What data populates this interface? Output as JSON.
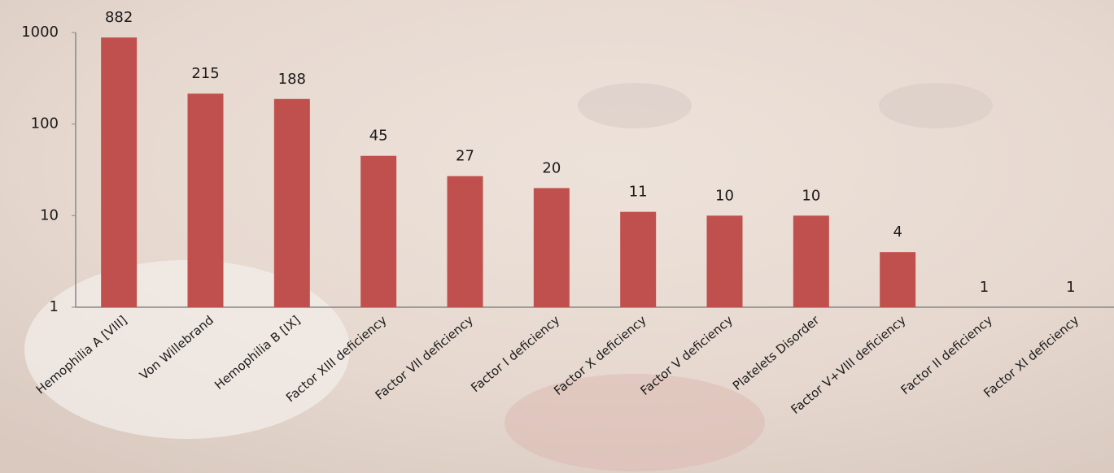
{
  "chart_data": {
    "type": "bar",
    "categories": [
      "Hemophilia A [VIII]",
      "Von Willebrand",
      "Hemophilia B [IX]",
      "Factor XIII deficiency",
      "Factor VII deficiency",
      "Factor I deficiency",
      "Factor X deficiency",
      "Factor V deficiency",
      "Platelets Disorder",
      "Factor V+VIII deficiency",
      "Factor II deficiency",
      "Factor XI deficiency"
    ],
    "values": [
      882,
      215,
      188,
      45,
      27,
      20,
      11,
      10,
      10,
      4,
      1,
      1
    ],
    "color": "#c0504d",
    "log_scale": true,
    "ylim": [
      1,
      1000
    ],
    "yticks": [
      1,
      10,
      100,
      1000
    ],
    "grid": false
  }
}
